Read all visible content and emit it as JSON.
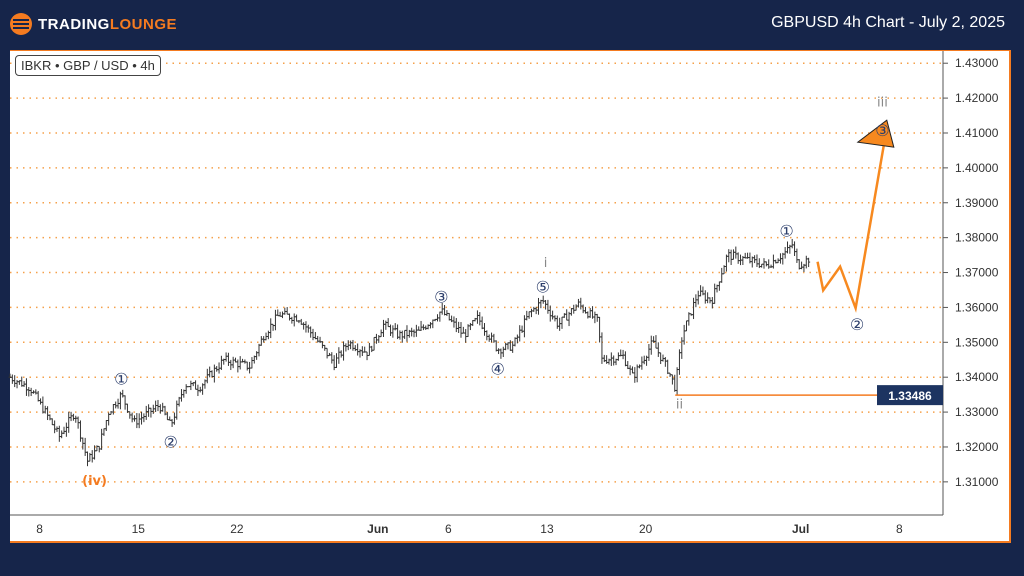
{
  "header": {
    "logo_part1": "TRADING",
    "logo_part2": "LOUNGE",
    "title": "GBPUSD 4h Chart - July 2, 2025"
  },
  "symbol_tag": "IBKR • GBP / USD • 4h",
  "colors": {
    "background": "#16254a",
    "accent": "#f47b20",
    "bars": "#333333",
    "wave_label": "#2c3e6b",
    "price_tag": "#1d3461"
  },
  "chart_data": {
    "type": "ohlc",
    "title": "GBPUSD 4h Chart - July 2, 2025",
    "ylim": [
      1.3005,
      1.4335
    ],
    "xlim_days": [
      -2.1,
      64.1
    ],
    "y_ticks": [
      "1.43000",
      "1.42000",
      "1.41000",
      "1.40000",
      "1.39000",
      "1.38000",
      "1.37000",
      "1.36000",
      "1.35000",
      "1.34000",
      "1.33000",
      "1.32000",
      "1.31000"
    ],
    "x_ticks": [
      {
        "day": 0,
        "label": "8"
      },
      {
        "day": 7,
        "label": "15"
      },
      {
        "day": 14,
        "label": "22"
      },
      {
        "day": 24,
        "label": "Jun"
      },
      {
        "day": 29,
        "label": "6"
      },
      {
        "day": 36,
        "label": "13"
      },
      {
        "day": 43,
        "label": "20"
      },
      {
        "day": 54,
        "label": "Jul"
      },
      {
        "day": 61,
        "label": "8"
      }
    ],
    "price_path": [
      [
        -2.1,
        1.34
      ],
      [
        -0.7,
        1.337
      ],
      [
        0.4,
        1.33
      ],
      [
        1.4,
        1.323
      ],
      [
        2.5,
        1.33
      ],
      [
        3.4,
        1.316
      ],
      [
        4.2,
        1.32
      ],
      [
        4.9,
        1.33
      ],
      [
        5.8,
        1.335
      ],
      [
        6.7,
        1.327
      ],
      [
        8.5,
        1.332
      ],
      [
        9.3,
        1.326
      ],
      [
        10.3,
        1.338
      ],
      [
        11.3,
        1.337
      ],
      [
        12.4,
        1.342
      ],
      [
        13.1,
        1.345
      ],
      [
        14.9,
        1.343
      ],
      [
        15.9,
        1.352
      ],
      [
        17.0,
        1.358
      ],
      [
        18.4,
        1.357
      ],
      [
        19.8,
        1.35
      ],
      [
        20.9,
        1.344
      ],
      [
        21.9,
        1.35
      ],
      [
        23.3,
        1.347
      ],
      [
        24.4,
        1.355
      ],
      [
        25.5,
        1.352
      ],
      [
        26.9,
        1.353
      ],
      [
        28.5,
        1.359
      ],
      [
        30.1,
        1.352
      ],
      [
        31.1,
        1.357
      ],
      [
        32.5,
        1.348
      ],
      [
        33.6,
        1.349
      ],
      [
        34.7,
        1.358
      ],
      [
        35.7,
        1.362
      ],
      [
        36.8,
        1.355
      ],
      [
        38.2,
        1.361
      ],
      [
        39.6,
        1.356
      ],
      [
        39.9,
        1.345
      ],
      [
        41.4,
        1.346
      ],
      [
        42.1,
        1.34
      ],
      [
        43.5,
        1.35
      ],
      [
        44.6,
        1.342
      ],
      [
        45.1,
        1.337
      ],
      [
        45.6,
        1.352
      ],
      [
        46.7,
        1.364
      ],
      [
        47.7,
        1.362
      ],
      [
        48.8,
        1.375
      ],
      [
        49.9,
        1.374
      ],
      [
        51.6,
        1.372
      ],
      [
        53.0,
        1.376
      ],
      [
        53.4,
        1.378
      ],
      [
        53.8,
        1.372
      ],
      [
        54.6,
        1.374
      ]
    ],
    "projection": [
      [
        55.2,
        1.3731
      ],
      [
        55.6,
        1.3649
      ],
      [
        56.8,
        1.3717
      ],
      [
        57.9,
        1.3598
      ],
      [
        59.9,
        1.4065
      ]
    ],
    "support_level": {
      "value": 1.33486,
      "label": "1.33486",
      "from_day": 45.1
    },
    "wave_labels": [
      {
        "text": "(iv)",
        "day": 3.9,
        "price": 1.3105,
        "style": "orange"
      },
      {
        "text": "①",
        "day": 5.8,
        "price": 1.3393,
        "style": "circle"
      },
      {
        "text": "②",
        "day": 9.3,
        "price": 1.3213,
        "style": "circle"
      },
      {
        "text": "③",
        "day": 28.5,
        "price": 1.3628,
        "style": "circle"
      },
      {
        "text": "④",
        "day": 32.5,
        "price": 1.3422,
        "style": "circle"
      },
      {
        "text": "⑤",
        "day": 35.7,
        "price": 1.3657,
        "style": "circle"
      },
      {
        "text": "i",
        "day": 35.9,
        "price": 1.373,
        "style": "grey"
      },
      {
        "text": "ii",
        "day": 45.4,
        "price": 1.3325,
        "style": "grey"
      },
      {
        "text": "①",
        "day": 53.0,
        "price": 1.3818,
        "style": "circle"
      },
      {
        "text": "②",
        "day": 58.0,
        "price": 1.355,
        "style": "circle"
      },
      {
        "text": "③",
        "day": 59.8,
        "price": 1.4105,
        "style": "circle"
      },
      {
        "text": "iii",
        "day": 59.8,
        "price": 1.419,
        "style": "grey"
      }
    ]
  }
}
